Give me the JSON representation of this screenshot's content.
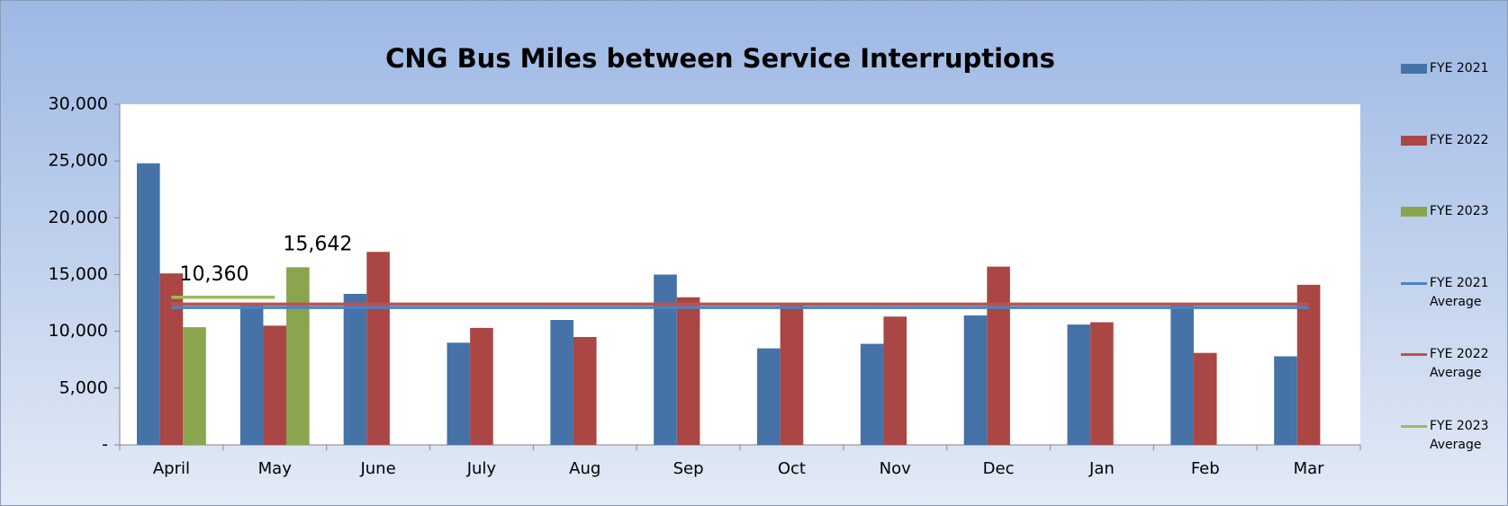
{
  "chart_data": {
    "type": "bar",
    "title": "CNG Bus Miles between Service Interruptions",
    "categories": [
      "April",
      "May",
      "June",
      "July",
      "Aug",
      "Sep",
      "Oct",
      "Nov",
      "Dec",
      "Jan",
      "Feb",
      "Mar"
    ],
    "series": [
      {
        "name": "FYE 2021",
        "type": "bar",
        "color": "#4572a7",
        "values": [
          24800,
          12300,
          13300,
          9000,
          11000,
          15000,
          8500,
          8900,
          11400,
          10600,
          12400,
          7800
        ]
      },
      {
        "name": "FYE 2022",
        "type": "bar",
        "color": "#aa4643",
        "values": [
          15100,
          10500,
          17000,
          10300,
          9500,
          13000,
          12500,
          11300,
          15700,
          10800,
          8100,
          14100
        ]
      },
      {
        "name": "FYE 2023",
        "type": "bar",
        "color": "#89a54e",
        "values": [
          10360,
          15642,
          null,
          null,
          null,
          null,
          null,
          null,
          null,
          null,
          null,
          null
        ],
        "value_labels": [
          "10,360",
          "15,642",
          null,
          null,
          null,
          null,
          null,
          null,
          null,
          null,
          null,
          null
        ]
      },
      {
        "name": "FYE 2021 Average",
        "type": "line",
        "color": "#4f81bd",
        "values": [
          12100,
          12100,
          12100,
          12100,
          12100,
          12100,
          12100,
          12100,
          12100,
          12100,
          12100,
          12100
        ]
      },
      {
        "name": "FYE 2022 Average",
        "type": "line",
        "color": "#c0504d",
        "values": [
          12400,
          12400,
          12400,
          12400,
          12400,
          12400,
          12400,
          12400,
          12400,
          12400,
          12400,
          12400
        ]
      },
      {
        "name": "FYE 2023 Average",
        "type": "line",
        "color": "#9bbb59",
        "values": [
          13001,
          13001,
          null,
          null,
          null,
          null,
          null,
          null,
          null,
          null,
          null,
          null
        ]
      }
    ],
    "ylim": [
      0,
      30000
    ],
    "yticks": [
      {
        "value": 0,
        "label": "-"
      },
      {
        "value": 5000,
        "label": "5,000"
      },
      {
        "value": 10000,
        "label": "10,000"
      },
      {
        "value": 15000,
        "label": "15,000"
      },
      {
        "value": 20000,
        "label": "20,000"
      },
      {
        "value": 25000,
        "label": "25,000"
      },
      {
        "value": 30000,
        "label": "30,000"
      }
    ],
    "grid": false,
    "legend": "right"
  }
}
